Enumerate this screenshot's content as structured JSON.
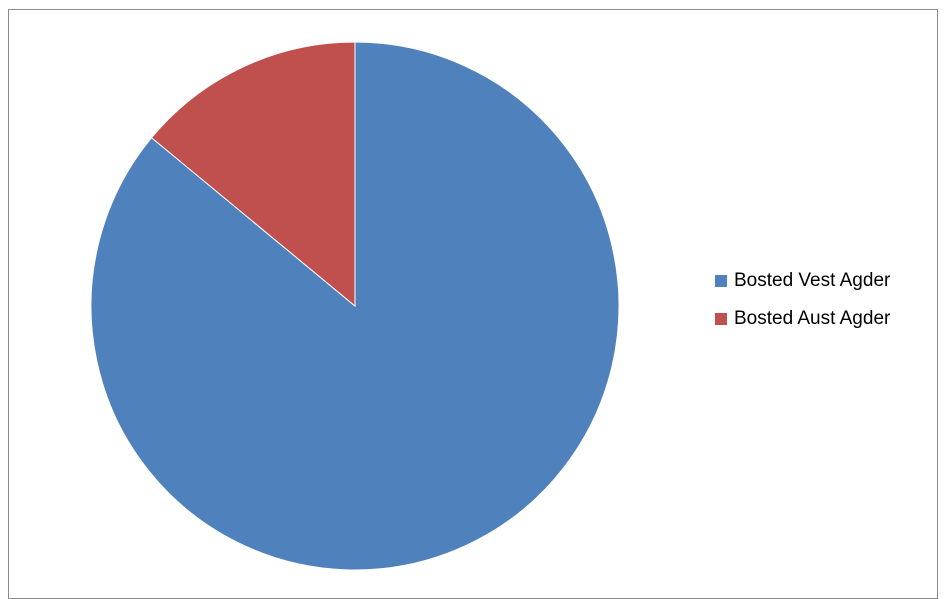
{
  "chart_data": {
    "type": "pie",
    "title": "",
    "start_angle_deg": 0,
    "direction": "clockwise",
    "series": [
      {
        "name": "",
        "values": [
          86,
          14
        ]
      }
    ],
    "categories": [
      "Bosted Vest Agder",
      "Bosted Aust Agder"
    ],
    "colors": [
      "#4F81BD",
      "#C0504D"
    ],
    "legend_position": "right"
  }
}
